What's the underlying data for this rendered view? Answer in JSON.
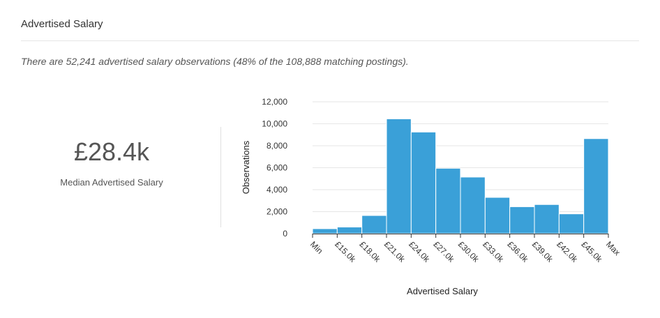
{
  "header": {
    "title": "Advertised Salary"
  },
  "summary": {
    "text": "There are 52,241 advertised salary observations (48% of the 108,888 matching postings)."
  },
  "stat": {
    "value": "£28.4k",
    "label": "Median Advertised Salary"
  },
  "colors": {
    "bar": "#3aa0d8",
    "grid": "#e6e6e6",
    "axis": "#333333"
  },
  "chart_data": {
    "type": "bar",
    "xlabel": "Advertised Salary",
    "ylabel": "Observations",
    "ylim": [
      0,
      12000
    ],
    "yticks": [
      0,
      2000,
      4000,
      6000,
      8000,
      10000,
      12000
    ],
    "ytick_labels": [
      "0",
      "2,000",
      "4,000",
      "6,000",
      "8,000",
      "10,000",
      "12,000"
    ],
    "bin_edges": [
      "Min",
      "£15.0k",
      "£18.0k",
      "£21.0k",
      "£24.0k",
      "£27.0k",
      "£30.0k",
      "£33.0k",
      "£36.0k",
      "£39.0k",
      "£42.0k",
      "£45.0k",
      "Max"
    ],
    "values": [
      450,
      600,
      1650,
      10450,
      9250,
      5950,
      5150,
      3300,
      2450,
      2650,
      1800,
      8650
    ],
    "grid": true
  }
}
